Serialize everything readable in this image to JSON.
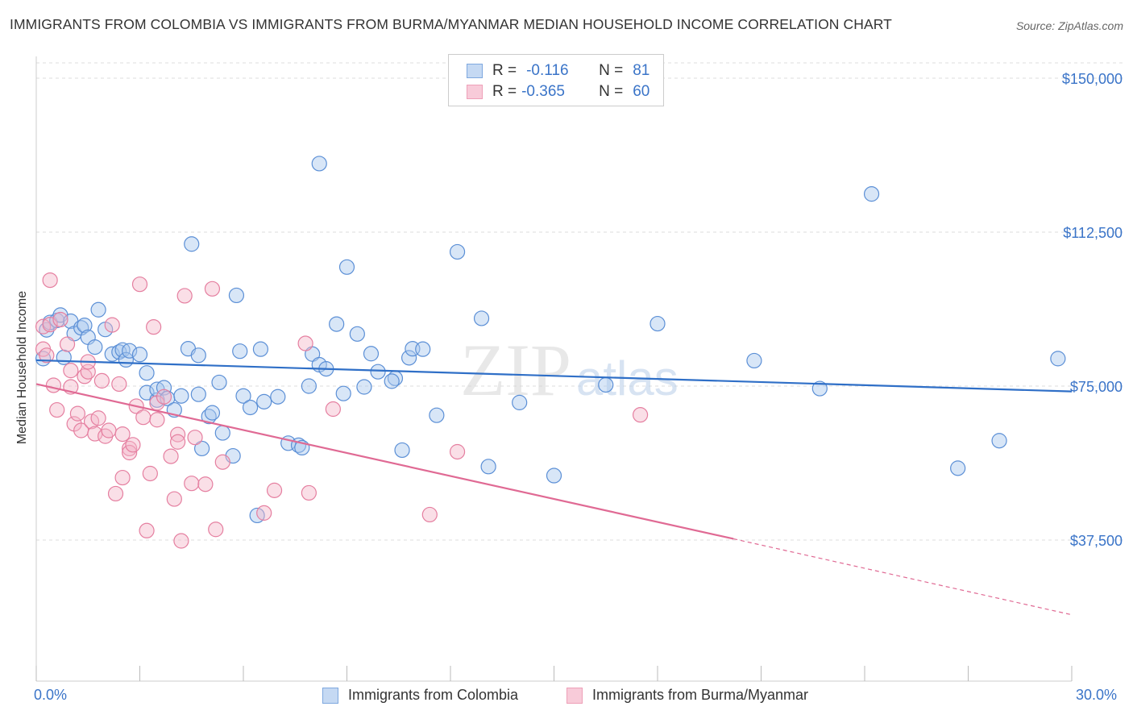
{
  "header": {
    "title": "IMMIGRANTS FROM COLOMBIA VS IMMIGRANTS FROM BURMA/MYANMAR MEDIAN HOUSEHOLD INCOME CORRELATION CHART",
    "source": "Source: ZipAtlas.com"
  },
  "legend": {
    "r_label": "R =",
    "n_label": "N =",
    "rows": [
      {
        "r": "-0.116",
        "n": "81"
      },
      {
        "r": "-0.365",
        "n": "60"
      }
    ]
  },
  "watermark": {
    "zip": "ZIP",
    "atlas": "atlas"
  },
  "colors": {
    "colombia_fill": "#a9c7ee",
    "colombia_stroke": "#5b8fd6",
    "colombia_line": "#2f6fc7",
    "burma_fill": "#f5b8ca",
    "burma_stroke": "#e57fa0",
    "burma_line": "#e06a94",
    "axis_label": "#3a74c8",
    "grid": "#dddddd"
  },
  "chart_data": {
    "type": "scatter",
    "title": "IMMIGRANTS FROM COLOMBIA VS IMMIGRANTS FROM BURMA/MYANMAR MEDIAN HOUSEHOLD INCOME CORRELATION CHART",
    "xlabel": "",
    "ylabel": "Median Household Income",
    "xlim": [
      0,
      30
    ],
    "ylim": [
      0,
      155000
    ],
    "x_tick_labels": [
      "0.0%",
      "30.0%"
    ],
    "y_ticks": [
      37500,
      75000,
      112500,
      150000
    ],
    "y_tick_labels": [
      "$37,500",
      "$75,000",
      "$112,500",
      "$150,000"
    ],
    "grid": true,
    "legend_position": "top-center",
    "series": [
      {
        "name": "Immigrants from Colombia",
        "color": "#5b8fd6",
        "trend": {
          "x": [
            0,
            30
          ],
          "y": [
            81300,
            73700
          ]
        },
        "points": [
          [
            0.2,
            81700
          ],
          [
            0.3,
            88700
          ],
          [
            0.4,
            90500
          ],
          [
            0.6,
            91000
          ],
          [
            0.7,
            92300
          ],
          [
            0.8,
            82000
          ],
          [
            1.0,
            90800
          ],
          [
            1.1,
            87800
          ],
          [
            1.3,
            89200
          ],
          [
            1.4,
            89800
          ],
          [
            1.5,
            86900
          ],
          [
            1.7,
            84500
          ],
          [
            1.8,
            93600
          ],
          [
            2.0,
            88800
          ],
          [
            2.2,
            82800
          ],
          [
            2.4,
            83300
          ],
          [
            2.5,
            83800
          ],
          [
            2.6,
            81400
          ],
          [
            2.7,
            83600
          ],
          [
            3.0,
            82700
          ],
          [
            3.2,
            73400
          ],
          [
            3.2,
            78200
          ],
          [
            3.5,
            71600
          ],
          [
            3.5,
            74200
          ],
          [
            3.7,
            74600
          ],
          [
            3.8,
            72000
          ],
          [
            4.0,
            69200
          ],
          [
            4.2,
            72600
          ],
          [
            4.4,
            84100
          ],
          [
            4.5,
            109600
          ],
          [
            4.7,
            82500
          ],
          [
            4.7,
            73000
          ],
          [
            4.8,
            59800
          ],
          [
            5.0,
            67600
          ],
          [
            5.1,
            68500
          ],
          [
            5.3,
            75900
          ],
          [
            5.4,
            63600
          ],
          [
            5.7,
            58000
          ],
          [
            5.8,
            97100
          ],
          [
            5.9,
            83500
          ],
          [
            6.0,
            72600
          ],
          [
            6.2,
            69800
          ],
          [
            6.4,
            43500
          ],
          [
            6.5,
            84000
          ],
          [
            6.6,
            71200
          ],
          [
            7.0,
            72400
          ],
          [
            7.3,
            61100
          ],
          [
            7.6,
            60600
          ],
          [
            7.7,
            60000
          ],
          [
            7.9,
            75000
          ],
          [
            8.0,
            82800
          ],
          [
            8.2,
            80200
          ],
          [
            8.4,
            79200
          ],
          [
            8.2,
            129200
          ],
          [
            8.7,
            90100
          ],
          [
            8.9,
            73200
          ],
          [
            9.0,
            104000
          ],
          [
            9.3,
            87700
          ],
          [
            9.5,
            74800
          ],
          [
            9.7,
            82900
          ],
          [
            9.9,
            78500
          ],
          [
            10.4,
            76900
          ],
          [
            10.6,
            59400
          ],
          [
            10.3,
            76200
          ],
          [
            10.8,
            81900
          ],
          [
            10.9,
            84100
          ],
          [
            11.2,
            84000
          ],
          [
            11.6,
            67900
          ],
          [
            12.2,
            107700
          ],
          [
            13.1,
            55400
          ],
          [
            12.9,
            91500
          ],
          [
            14.0,
            71000
          ],
          [
            15.0,
            53200
          ],
          [
            16.5,
            75300
          ],
          [
            18.0,
            90200
          ],
          [
            20.8,
            81200
          ],
          [
            22.7,
            74400
          ],
          [
            24.2,
            121800
          ],
          [
            26.7,
            55000
          ],
          [
            27.9,
            61700
          ],
          [
            29.6,
            81700
          ]
        ]
      },
      {
        "name": "Immigrants from Burma/Myanmar",
        "color": "#e57fa0",
        "trend": {
          "x": [
            0,
            20.2
          ],
          "y": [
            75500,
            37800
          ]
        },
        "trend_dashed": {
          "x": [
            20.2,
            30
          ],
          "y": [
            37800,
            19300
          ]
        },
        "points": [
          [
            0.2,
            89500
          ],
          [
            0.2,
            84000
          ],
          [
            0.3,
            82500
          ],
          [
            0.4,
            90000
          ],
          [
            0.4,
            100800
          ],
          [
            0.5,
            75200
          ],
          [
            0.6,
            69200
          ],
          [
            0.7,
            91200
          ],
          [
            0.9,
            85200
          ],
          [
            1.0,
            74800
          ],
          [
            1.0,
            78800
          ],
          [
            1.1,
            65800
          ],
          [
            1.2,
            68300
          ],
          [
            1.3,
            64200
          ],
          [
            1.4,
            77400
          ],
          [
            1.5,
            78500
          ],
          [
            1.5,
            80900
          ],
          [
            1.6,
            66400
          ],
          [
            1.7,
            63400
          ],
          [
            1.8,
            67200
          ],
          [
            1.9,
            76300
          ],
          [
            2.0,
            62800
          ],
          [
            2.1,
            64200
          ],
          [
            2.2,
            89900
          ],
          [
            2.3,
            48800
          ],
          [
            2.4,
            75500
          ],
          [
            2.5,
            52700
          ],
          [
            2.5,
            63300
          ],
          [
            2.7,
            59800
          ],
          [
            2.7,
            58800
          ],
          [
            2.8,
            60700
          ],
          [
            2.9,
            70100
          ],
          [
            3.0,
            99800
          ],
          [
            3.1,
            67400
          ],
          [
            3.2,
            39800
          ],
          [
            3.3,
            53700
          ],
          [
            3.4,
            89400
          ],
          [
            3.5,
            66800
          ],
          [
            3.5,
            70900
          ],
          [
            3.7,
            72400
          ],
          [
            3.9,
            57900
          ],
          [
            4.0,
            47500
          ],
          [
            4.1,
            63200
          ],
          [
            4.1,
            61400
          ],
          [
            4.3,
            97000
          ],
          [
            4.2,
            37300
          ],
          [
            4.5,
            51300
          ],
          [
            4.6,
            62500
          ],
          [
            4.9,
            51100
          ],
          [
            5.1,
            98700
          ],
          [
            5.2,
            40100
          ],
          [
            5.4,
            56500
          ],
          [
            6.6,
            44100
          ],
          [
            6.9,
            49600
          ],
          [
            7.8,
            85400
          ],
          [
            7.9,
            49000
          ],
          [
            8.6,
            69400
          ],
          [
            11.4,
            43700
          ],
          [
            12.2,
            59000
          ],
          [
            17.5,
            68000
          ]
        ]
      }
    ]
  },
  "bottom_legend": {
    "colombia": "Immigrants from Colombia",
    "burma": "Immigrants from Burma/Myanmar"
  }
}
